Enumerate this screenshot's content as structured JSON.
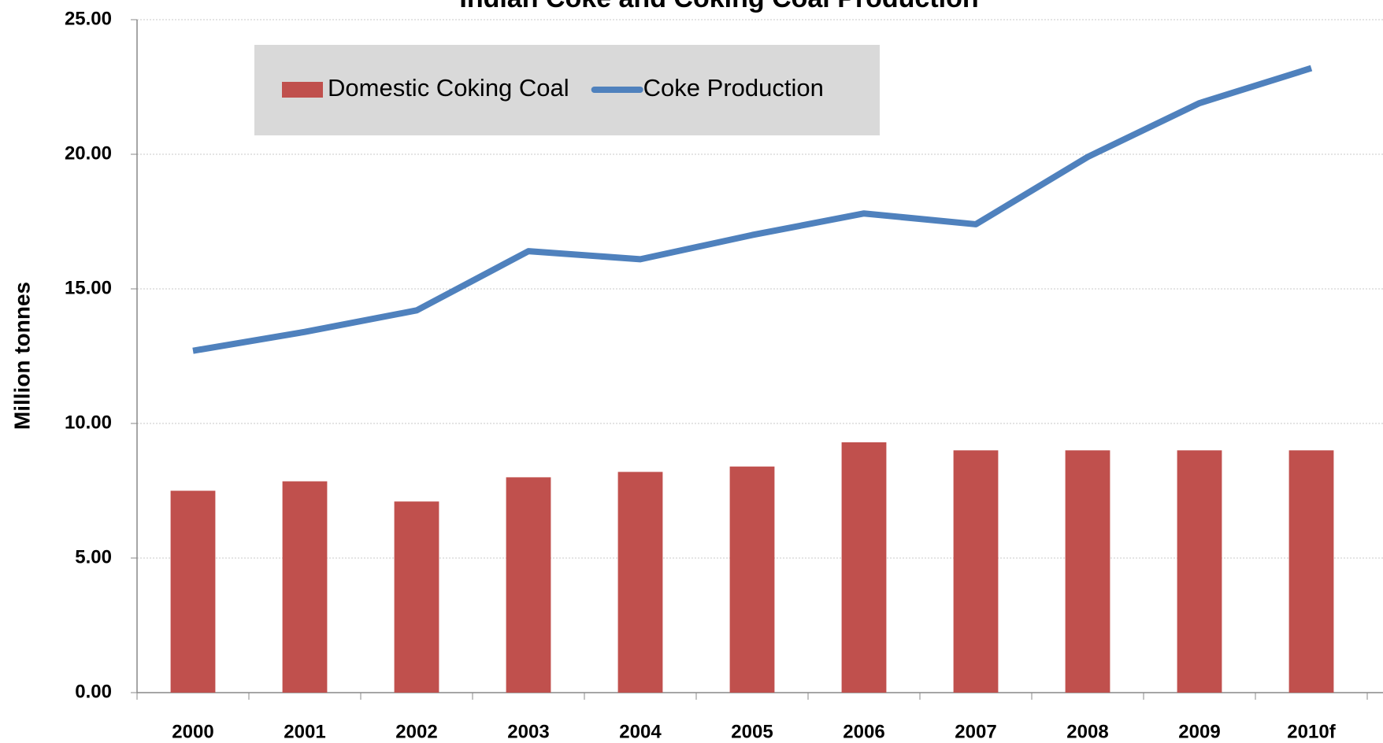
{
  "chart_data": {
    "type": "bar_line",
    "title": "Indian Coke and Coking Coal Production",
    "y_label": "Million tonnes",
    "categories": [
      "2000",
      "2001",
      "2002",
      "2003",
      "2004",
      "2005",
      "2006",
      "2007",
      "2008",
      "2009",
      "2010f"
    ],
    "series": [
      {
        "name": "Domestic Coking Coal",
        "type": "bar",
        "color": "#c0504d",
        "values": [
          7.5,
          7.85,
          7.1,
          8.0,
          8.2,
          8.4,
          9.3,
          9.0,
          9.0,
          9.0,
          9.0
        ]
      },
      {
        "name": "Coke Production",
        "type": "line",
        "color": "#4f81bd",
        "values": [
          12.7,
          13.4,
          14.2,
          16.4,
          16.1,
          17.0,
          17.8,
          17.4,
          19.9,
          21.9,
          23.2
        ]
      }
    ],
    "ylim": [
      0,
      25
    ],
    "yticks": [
      {
        "value": 0,
        "label": "0.00"
      },
      {
        "value": 5,
        "label": "5.00"
      },
      {
        "value": 10,
        "label": "10.00"
      },
      {
        "value": 15,
        "label": "15.00"
      },
      {
        "value": 20,
        "label": "20.00"
      },
      {
        "value": 25,
        "label": "25.00"
      }
    ],
    "grid": true,
    "legend": "top-left"
  }
}
